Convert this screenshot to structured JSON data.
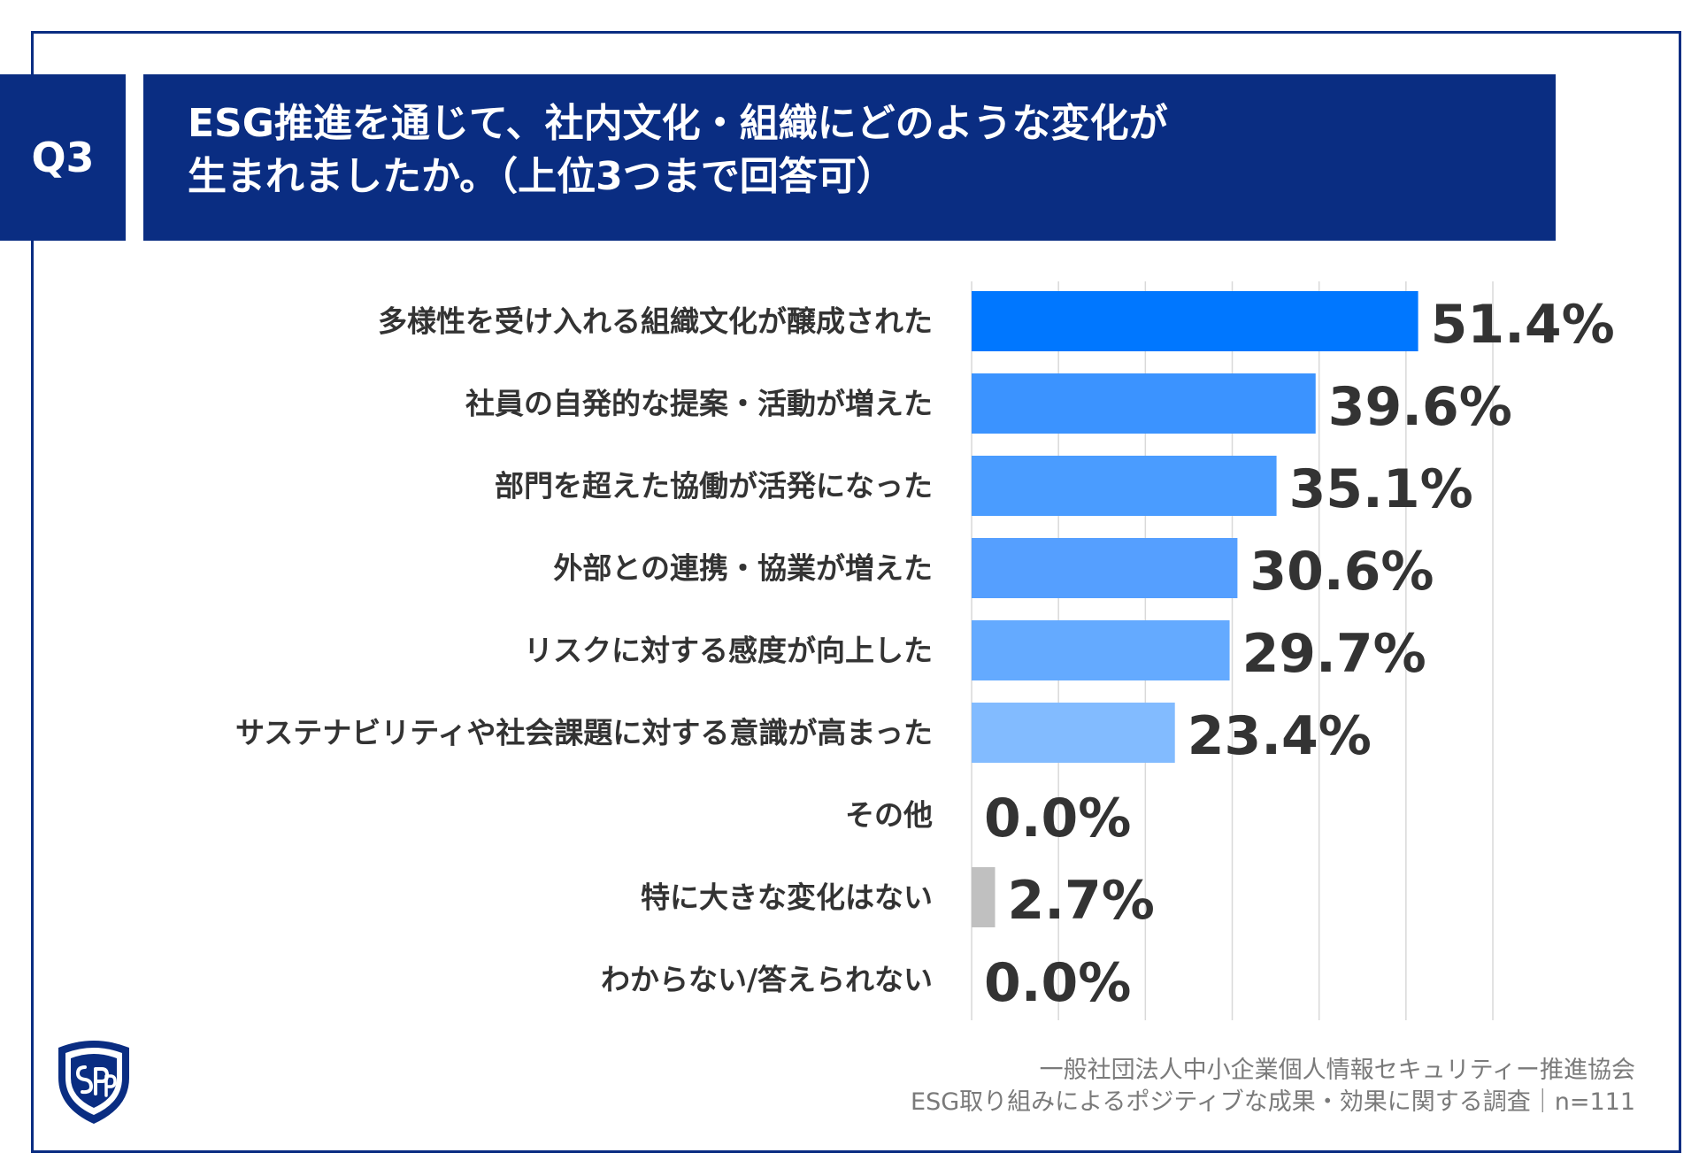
{
  "header": {
    "question_badge": "Q3",
    "title_line1": "ESG推進を通じて、社内文化・組織にどのような変化が",
    "title_line2": "生まれましたか。（上位3つまで回答可）"
  },
  "footer": {
    "line1": "一般社団法人中小企業個人情報セキュリティー推進協会",
    "line2": "ESG取り組みによるポジティブな成果・効果に関する調査｜n=111"
  },
  "logo": {
    "icon": "spp-shield-logo"
  },
  "chart_data": {
    "type": "bar",
    "orientation": "horizontal",
    "categories": [
      "多様性を受け入れる組織文化が醸成された",
      "社員の自発的な提案・活動が増えた",
      "部門を超えた協働が活発になった",
      "外部との連携・協業が増えた",
      "リスクに対する感度が向上した",
      "サステナビリティや社会課題に対する意識が高まった",
      "その他",
      "特に大きな変化はない",
      "わからない/答えられない"
    ],
    "values": [
      51.4,
      39.6,
      35.1,
      30.6,
      29.7,
      23.4,
      0.0,
      2.7,
      0.0
    ],
    "value_labels": [
      "51.4%",
      "39.6%",
      "35.1%",
      "30.6%",
      "29.7%",
      "23.4%",
      "0.0%",
      "2.7%",
      "0.0%"
    ],
    "bar_colors": [
      "#0077ff",
      "#3b93ff",
      "#4a9cff",
      "#559fff",
      "#64aaff",
      "#82bbff",
      "#a9cfff",
      "#c0c0c0",
      "#c0c0c0"
    ],
    "xlim": [
      0,
      60
    ],
    "grid": true
  }
}
